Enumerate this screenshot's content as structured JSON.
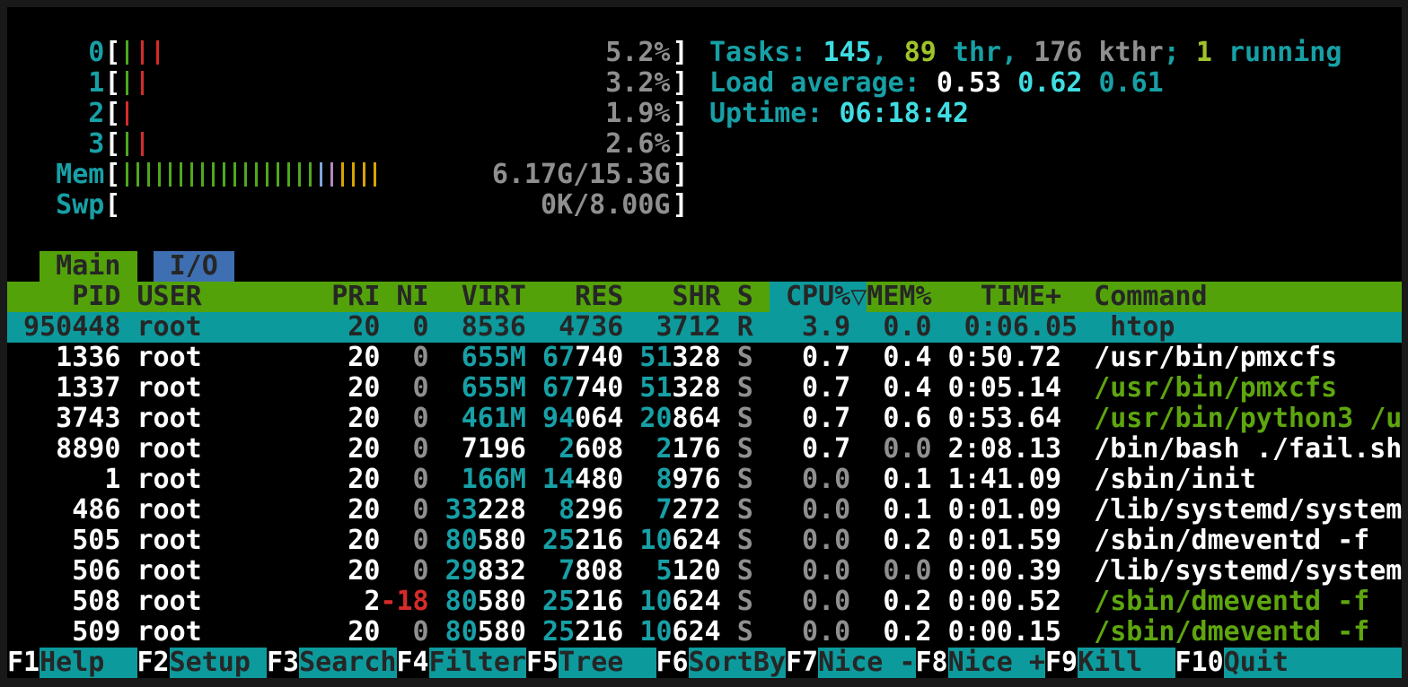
{
  "summary": {
    "cpu_percent": [
      "5.2%",
      "3.2%",
      "1.9%",
      "2.6%"
    ],
    "mem_used_total": "6.17G/15.3G",
    "swap_used_total": "0K/8.00G",
    "tasks": "145",
    "threads": "89",
    "kernel_threads": "176",
    "running": "1",
    "load_average": [
      "0.53",
      "0.62",
      "0.61"
    ],
    "uptime": "06:18:42"
  },
  "colors": {
    "accent_teal": "#0d9a9d",
    "header_green": "#53a20a",
    "tab_blue": "#3e6fb2",
    "cyan_dim": "#17a0a6",
    "cyan_bright": "#3fdde2",
    "cmd_green": "#5ea60f",
    "nice_red": "#d62b2b",
    "gray": "#8f8f8f"
  },
  "meters": [
    {
      "id": "cpu-0",
      "label": "0",
      "value": "5.2%",
      "pitch": 17,
      "ticks": [
        "g",
        "r",
        "r"
      ]
    },
    {
      "id": "cpu-1",
      "label": "1",
      "value": "3.2%",
      "pitch": 17,
      "ticks": [
        "g",
        "r"
      ]
    },
    {
      "id": "cpu-2",
      "label": "2",
      "value": "1.9%",
      "pitch": 17,
      "ticks": [
        "r"
      ]
    },
    {
      "id": "cpu-3",
      "label": "3",
      "value": "2.6%",
      "pitch": 17,
      "ticks": [
        "g",
        "r"
      ]
    },
    {
      "id": "mem",
      "label": "Mem",
      "value": "6.17G/15.3G",
      "pitch": 12,
      "ticks": [
        "g",
        "g",
        "g",
        "g",
        "g",
        "g",
        "g",
        "g",
        "g",
        "g",
        "g",
        "g",
        "g",
        "g",
        "g",
        "g",
        "g",
        "g",
        "b",
        "p",
        "y",
        "y",
        "y",
        "y"
      ]
    },
    {
      "id": "swp",
      "label": "Swp",
      "value": "0K/8.00G",
      "pitch": 12,
      "ticks": []
    }
  ],
  "info_lines": [
    {
      "name": "tasks-summary",
      "segs": [
        [
          "cy",
          "Tasks: "
        ],
        [
          "bcy",
          "145"
        ],
        [
          "cy",
          ", "
        ],
        [
          "ygrn",
          "89"
        ],
        [
          "cy",
          " thr"
        ],
        [
          "cy",
          ", "
        ],
        [
          "gr",
          "176 kthr"
        ],
        [
          "cy",
          "; "
        ],
        [
          "ygrn",
          "1"
        ],
        [
          "cy",
          " running"
        ]
      ]
    },
    {
      "name": "load-average",
      "segs": [
        [
          "cy",
          "Load average: "
        ],
        [
          "w",
          "0.53 "
        ],
        [
          "bcy",
          "0.62 "
        ],
        [
          "cy",
          "0.61"
        ]
      ]
    },
    {
      "name": "uptime",
      "segs": [
        [
          "cy",
          "Uptime: "
        ],
        [
          "bcy",
          "06:18:42"
        ]
      ]
    }
  ],
  "tabs_line": [
    {
      "name": "spacer",
      "cls": "plain",
      "text": "  ",
      "interactable": false
    },
    {
      "name": "tab-main",
      "cls": "tabmain",
      "text": " Main ",
      "interactable": true
    },
    {
      "name": "spacer",
      "cls": "plain",
      "text": " ",
      "interactable": false
    },
    {
      "name": "tab-io",
      "cls": "tabio",
      "text": " I/O ",
      "interactable": true
    }
  ],
  "columns": [
    "PID",
    "USER",
    "PRI",
    "NI",
    "VIRT",
    "RES",
    "SHR",
    "S",
    "CPU%",
    "MEM%",
    "TIME+",
    "Command"
  ],
  "sort_column": "CPU%",
  "sort_indicator": "▽",
  "header_line": [
    {
      "name": "header-columns-left",
      "cls": "hdr",
      "text": "    PID USER        PRI NI  VIRT   RES   SHR S ",
      "interactable": true
    },
    {
      "name": "sort-column-cpu",
      "cls": "sortc",
      "text": " CPU%▽",
      "interactable": true
    },
    {
      "name": "header-columns-right",
      "cls": "hdr",
      "text": "MEM%   TIME+  Command             ",
      "interactable": true
    }
  ],
  "rows": [
    {
      "pid": "950448",
      "selected": true,
      "values": {
        "pid": "950448",
        "user": "root",
        "pri": "20",
        "ni": "0",
        "virt": "8536",
        "res": "4736",
        "shr": "3712",
        "s": "R",
        "cpu": "3.9",
        "mem": "0.0",
        "time": "0:06.05",
        "command": "htop"
      },
      "segs": [
        [
          "w",
          " 950448 root         20  0  8536  4736  3712 R   3.9  0.0  0:06.05  htop"
        ]
      ]
    },
    {
      "pid": "1336",
      "selected": false,
      "values": {
        "pid": "1336",
        "user": "root",
        "pri": "20",
        "ni": "0",
        "virt": "655M",
        "res": "67740",
        "shr": "51328",
        "s": "S",
        "cpu": "0.7",
        "mem": "0.4",
        "time": "0:50.72",
        "command": "/usr/bin/pmxcfs"
      },
      "segs": [
        [
          "w",
          "   1336 root         20"
        ],
        [
          "gr",
          "  0"
        ],
        [
          "w",
          "  "
        ],
        [
          "cy",
          "655M"
        ],
        [
          "w",
          " "
        ],
        [
          "cy",
          "67"
        ],
        [
          "w",
          "740 "
        ],
        [
          "cy",
          "51"
        ],
        [
          "w",
          "328 "
        ],
        [
          "gr",
          "S"
        ],
        [
          "w",
          "   0.7 "
        ],
        [
          "w",
          " 0.4"
        ],
        [
          "w",
          " 0:50.72"
        ],
        [
          "w",
          "  /usr/bin/pmxcfs"
        ]
      ]
    },
    {
      "pid": "1337",
      "selected": false,
      "values": {
        "pid": "1337",
        "user": "root",
        "pri": "20",
        "ni": "0",
        "virt": "655M",
        "res": "67740",
        "shr": "51328",
        "s": "S",
        "cpu": "0.7",
        "mem": "0.4",
        "time": "0:05.14",
        "command": "/usr/bin/pmxcfs"
      },
      "segs": [
        [
          "w",
          "   1337 root         20"
        ],
        [
          "gr",
          "  0"
        ],
        [
          "w",
          "  "
        ],
        [
          "cy",
          "655M"
        ],
        [
          "w",
          " "
        ],
        [
          "cy",
          "67"
        ],
        [
          "w",
          "740 "
        ],
        [
          "cy",
          "51"
        ],
        [
          "w",
          "328 "
        ],
        [
          "gr",
          "S"
        ],
        [
          "w",
          "   0.7 "
        ],
        [
          "w",
          " 0.4"
        ],
        [
          "w",
          " 0:05.14"
        ],
        [
          "grn",
          "  /usr/bin/pmxcfs"
        ]
      ]
    },
    {
      "pid": "3743",
      "selected": false,
      "values": {
        "pid": "3743",
        "user": "root",
        "pri": "20",
        "ni": "0",
        "virt": "461M",
        "res": "94064",
        "shr": "20864",
        "s": "S",
        "cpu": "0.7",
        "mem": "0.6",
        "time": "0:53.64",
        "command": "/usr/bin/python3 /u"
      },
      "segs": [
        [
          "w",
          "   3743 root         20"
        ],
        [
          "gr",
          "  0"
        ],
        [
          "w",
          "  "
        ],
        [
          "cy",
          "461M"
        ],
        [
          "w",
          " "
        ],
        [
          "cy",
          "94"
        ],
        [
          "w",
          "064 "
        ],
        [
          "cy",
          "20"
        ],
        [
          "w",
          "864 "
        ],
        [
          "gr",
          "S"
        ],
        [
          "w",
          "   0.7 "
        ],
        [
          "w",
          " 0.6"
        ],
        [
          "w",
          " 0:53.64"
        ],
        [
          "grn",
          "  /usr/bin/python3 /u"
        ]
      ]
    },
    {
      "pid": "8890",
      "selected": false,
      "values": {
        "pid": "8890",
        "user": "root",
        "pri": "20",
        "ni": "0",
        "virt": "7196",
        "res": "2608",
        "shr": "2176",
        "s": "S",
        "cpu": "0.7",
        "mem": "0.0",
        "time": "2:08.13",
        "command": "/bin/bash ./fail.sh"
      },
      "segs": [
        [
          "w",
          "   8890 root         20"
        ],
        [
          "gr",
          "  0"
        ],
        [
          "w",
          "  7196  "
        ],
        [
          "cy",
          "2"
        ],
        [
          "w",
          "608  "
        ],
        [
          "cy",
          "2"
        ],
        [
          "w",
          "176 "
        ],
        [
          "gr",
          "S"
        ],
        [
          "w",
          "   0.7 "
        ],
        [
          "gr",
          " 0.0"
        ],
        [
          "w",
          " 2:08.13"
        ],
        [
          "w",
          "  /bin/bash ./fail.sh"
        ]
      ]
    },
    {
      "pid": "1",
      "selected": false,
      "values": {
        "pid": "1",
        "user": "root",
        "pri": "20",
        "ni": "0",
        "virt": "166M",
        "res": "14480",
        "shr": "8976",
        "s": "S",
        "cpu": "0.0",
        "mem": "0.1",
        "time": "1:41.09",
        "command": "/sbin/init"
      },
      "segs": [
        [
          "w",
          "      1 root         20"
        ],
        [
          "gr",
          "  0"
        ],
        [
          "w",
          "  "
        ],
        [
          "cy",
          "166M"
        ],
        [
          "w",
          " "
        ],
        [
          "cy",
          "14"
        ],
        [
          "w",
          "480  "
        ],
        [
          "cy",
          "8"
        ],
        [
          "w",
          "976 "
        ],
        [
          "gr",
          "S"
        ],
        [
          "gr",
          "   0.0 "
        ],
        [
          "w",
          " 0.1"
        ],
        [
          "w",
          " 1:41.09"
        ],
        [
          "w",
          "  /sbin/init"
        ]
      ]
    },
    {
      "pid": "486",
      "selected": false,
      "values": {
        "pid": "486",
        "user": "root",
        "pri": "20",
        "ni": "0",
        "virt": "33228",
        "res": "8296",
        "shr": "7272",
        "s": "S",
        "cpu": "0.0",
        "mem": "0.1",
        "time": "0:01.09",
        "command": "/lib/systemd/system"
      },
      "segs": [
        [
          "w",
          "    486 root         20"
        ],
        [
          "gr",
          "  0"
        ],
        [
          "w",
          " "
        ],
        [
          "cy",
          "33"
        ],
        [
          "w",
          "228  "
        ],
        [
          "cy",
          "8"
        ],
        [
          "w",
          "296  "
        ],
        [
          "cy",
          "7"
        ],
        [
          "w",
          "272 "
        ],
        [
          "gr",
          "S"
        ],
        [
          "gr",
          "   0.0 "
        ],
        [
          "w",
          " 0.1"
        ],
        [
          "w",
          " 0:01.09"
        ],
        [
          "w",
          "  /lib/systemd/system"
        ]
      ]
    },
    {
      "pid": "505",
      "selected": false,
      "values": {
        "pid": "505",
        "user": "root",
        "pri": "20",
        "ni": "0",
        "virt": "80580",
        "res": "25216",
        "shr": "10624",
        "s": "S",
        "cpu": "0.0",
        "mem": "0.2",
        "time": "0:01.59",
        "command": "/sbin/dmeventd -f"
      },
      "segs": [
        [
          "w",
          "    505 root         20"
        ],
        [
          "gr",
          "  0"
        ],
        [
          "w",
          " "
        ],
        [
          "cy",
          "80"
        ],
        [
          "w",
          "580 "
        ],
        [
          "cy",
          "25"
        ],
        [
          "w",
          "216 "
        ],
        [
          "cy",
          "10"
        ],
        [
          "w",
          "624 "
        ],
        [
          "gr",
          "S"
        ],
        [
          "gr",
          "   0.0 "
        ],
        [
          "w",
          " 0.2"
        ],
        [
          "w",
          " 0:01.59"
        ],
        [
          "w",
          "  /sbin/dmeventd -f"
        ]
      ]
    },
    {
      "pid": "506",
      "selected": false,
      "values": {
        "pid": "506",
        "user": "root",
        "pri": "20",
        "ni": "0",
        "virt": "29832",
        "res": "7808",
        "shr": "5120",
        "s": "S",
        "cpu": "0.0",
        "mem": "0.0",
        "time": "0:00.39",
        "command": "/lib/systemd/system"
      },
      "segs": [
        [
          "w",
          "    506 root         20"
        ],
        [
          "gr",
          "  0"
        ],
        [
          "w",
          " "
        ],
        [
          "cy",
          "29"
        ],
        [
          "w",
          "832  "
        ],
        [
          "cy",
          "7"
        ],
        [
          "w",
          "808  "
        ],
        [
          "cy",
          "5"
        ],
        [
          "w",
          "120 "
        ],
        [
          "gr",
          "S"
        ],
        [
          "gr",
          "   0.0 "
        ],
        [
          "gr",
          " 0.0"
        ],
        [
          "w",
          " 0:00.39"
        ],
        [
          "w",
          "  /lib/systemd/system"
        ]
      ]
    },
    {
      "pid": "508",
      "selected": false,
      "values": {
        "pid": "508",
        "user": "root",
        "pri": "2",
        "ni": "-18",
        "virt": "80580",
        "res": "25216",
        "shr": "10624",
        "s": "S",
        "cpu": "0.0",
        "mem": "0.2",
        "time": "0:00.52",
        "command": "/sbin/dmeventd -f"
      },
      "segs": [
        [
          "w",
          "    508 root          2"
        ],
        [
          "red",
          "-18"
        ],
        [
          "w",
          " "
        ],
        [
          "cy",
          "80"
        ],
        [
          "w",
          "580 "
        ],
        [
          "cy",
          "25"
        ],
        [
          "w",
          "216 "
        ],
        [
          "cy",
          "10"
        ],
        [
          "w",
          "624 "
        ],
        [
          "gr",
          "S"
        ],
        [
          "gr",
          "   0.0 "
        ],
        [
          "w",
          " 0.2"
        ],
        [
          "w",
          " 0:00.52"
        ],
        [
          "grn",
          "  /sbin/dmeventd -f"
        ]
      ]
    },
    {
      "pid": "509",
      "selected": false,
      "values": {
        "pid": "509",
        "user": "root",
        "pri": "20",
        "ni": "0",
        "virt": "80580",
        "res": "25216",
        "shr": "10624",
        "s": "S",
        "cpu": "0.0",
        "mem": "0.2",
        "time": "0:00.15",
        "command": "/sbin/dmeventd -f"
      },
      "segs": [
        [
          "w",
          "    509 root         20"
        ],
        [
          "gr",
          "  0"
        ],
        [
          "w",
          " "
        ],
        [
          "cy",
          "80"
        ],
        [
          "w",
          "580 "
        ],
        [
          "cy",
          "25"
        ],
        [
          "w",
          "216 "
        ],
        [
          "cy",
          "10"
        ],
        [
          "w",
          "624 "
        ],
        [
          "gr",
          "S"
        ],
        [
          "gr",
          "   0.0 "
        ],
        [
          "w",
          " 0.2"
        ],
        [
          "w",
          " 0:00.15"
        ],
        [
          "grn",
          "  /sbin/dmeventd -f"
        ]
      ]
    }
  ],
  "fnbar": [
    {
      "key": "F1",
      "label": "Help  ",
      "name": "help"
    },
    {
      "key": "F2",
      "label": "Setup ",
      "name": "setup"
    },
    {
      "key": "F3",
      "label": "Search",
      "name": "search"
    },
    {
      "key": "F4",
      "label": "Filter",
      "name": "filter"
    },
    {
      "key": "F5",
      "label": "Tree  ",
      "name": "tree"
    },
    {
      "key": "F6",
      "label": "SortBy",
      "name": "sortby"
    },
    {
      "key": "F7",
      "label": "Nice -",
      "name": "nice-minus"
    },
    {
      "key": "F8",
      "label": "Nice +",
      "name": "nice-plus"
    },
    {
      "key": "F9",
      "label": "Kill  ",
      "name": "kill"
    },
    {
      "key": "F10",
      "label": "Quit       ",
      "name": "quit"
    }
  ]
}
